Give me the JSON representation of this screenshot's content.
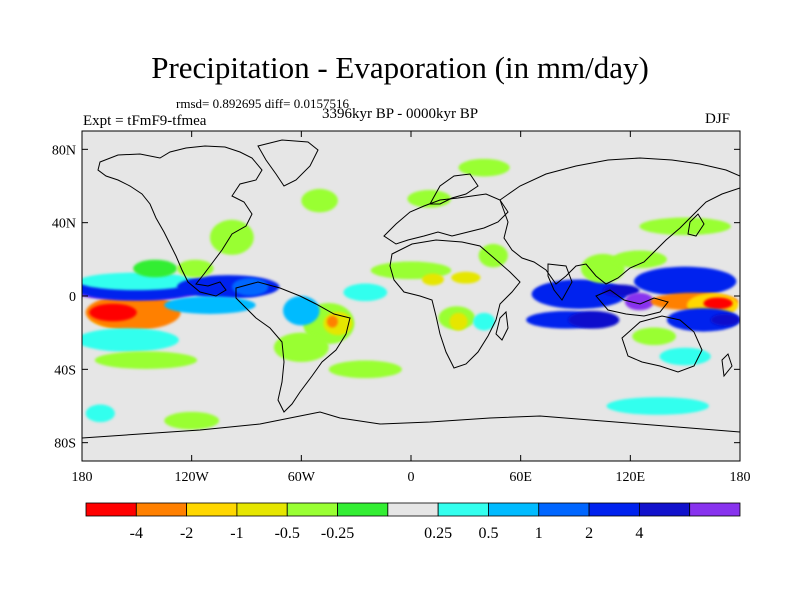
{
  "chart_data": {
    "type": "heatmap",
    "title": "Precipitation - Evaporation (in mm/day)",
    "stats_text": "rmsd= 0.892695 diff= 0.0157516",
    "left_label": "Expt = tFmF9-tfmea",
    "center_label": "3396kyr BP - 0000kyr BP",
    "right_label": "DJF",
    "x_range": [
      -180,
      180
    ],
    "y_range": [
      -90,
      90
    ],
    "x_ticks": [
      {
        "value": -180,
        "label": "180"
      },
      {
        "value": -120,
        "label": "120W"
      },
      {
        "value": -60,
        "label": "60W"
      },
      {
        "value": 0,
        "label": "0"
      },
      {
        "value": 60,
        "label": "60E"
      },
      {
        "value": 120,
        "label": "120E"
      },
      {
        "value": 180,
        "label": "180"
      }
    ],
    "y_ticks": [
      {
        "value": 80,
        "label": "80N"
      },
      {
        "value": 40,
        "label": "40N"
      },
      {
        "value": 0,
        "label": "0"
      },
      {
        "value": -40,
        "label": "40S"
      },
      {
        "value": -80,
        "label": "80S"
      }
    ],
    "colorbar": {
      "colors": [
        "#ff0000",
        "#ff8000",
        "#ffd700",
        "#e6e600",
        "#99ff33",
        "#33ee33",
        "#e6e6e6",
        "#33ffee",
        "#00bbff",
        "#0066ff",
        "#0022ee",
        "#1111cc",
        "#8833ee"
      ],
      "labels": [
        "-4",
        "-2",
        "-1",
        "-0.5",
        "-0.25",
        "0.25",
        "0.5",
        "1",
        "2",
        "4"
      ]
    },
    "regions": [
      {
        "level": 2,
        "cx": -159,
        "cy": -11,
        "rx": 17,
        "ry": 4
      },
      {
        "level": 1,
        "cx": -152,
        "cy": -9,
        "rx": 26,
        "ry": 6
      },
      {
        "level": 0,
        "cx": -163,
        "cy": -9,
        "rx": 13,
        "ry": 3
      },
      {
        "level": 12,
        "cx": -150,
        "cy": 1,
        "rx": 32,
        "ry": 2
      },
      {
        "level": 10,
        "cx": -150,
        "cy": 4,
        "rx": 34,
        "ry": 4
      },
      {
        "level": 7,
        "cx": -150,
        "cy": 8,
        "rx": 32,
        "ry": 3
      },
      {
        "level": 7,
        "cx": -155,
        "cy": -24,
        "rx": 28,
        "ry": 4
      },
      {
        "level": 10,
        "cx": -100,
        "cy": 5,
        "rx": 28,
        "ry": 4
      },
      {
        "level": 9,
        "cx": -88,
        "cy": 5,
        "rx": 10,
        "ry": 3
      },
      {
        "level": 5,
        "cx": -140,
        "cy": 15,
        "rx": 12,
        "ry": 3
      },
      {
        "level": 4,
        "cx": -118,
        "cy": 15,
        "rx": 10,
        "ry": 3
      },
      {
        "level": 8,
        "cx": -110,
        "cy": -5,
        "rx": 25,
        "ry": 3
      },
      {
        "level": 4,
        "cx": -45,
        "cy": -15,
        "rx": 14,
        "ry": 7
      },
      {
        "level": 3,
        "cx": -40,
        "cy": -15,
        "rx": 8,
        "ry": 4
      },
      {
        "level": 1,
        "cx": -43,
        "cy": -14,
        "rx": 3,
        "ry": 2
      },
      {
        "level": 8,
        "cx": -60,
        "cy": -8,
        "rx": 10,
        "ry": 5
      },
      {
        "level": 4,
        "cx": -60,
        "cy": -28,
        "rx": 15,
        "ry": 5
      },
      {
        "level": 7,
        "cx": -25,
        "cy": 2,
        "rx": 12,
        "ry": 3
      },
      {
        "level": 4,
        "cx": -145,
        "cy": -35,
        "rx": 28,
        "ry": 3
      },
      {
        "level": 4,
        "cx": -25,
        "cy": -40,
        "rx": 20,
        "ry": 3
      },
      {
        "level": 4,
        "cx": -98,
        "cy": 32,
        "rx": 12,
        "ry": 6
      },
      {
        "level": 4,
        "cx": -50,
        "cy": 52,
        "rx": 10,
        "ry": 4
      },
      {
        "level": 4,
        "cx": 10,
        "cy": 53,
        "rx": 12,
        "ry": 3
      },
      {
        "level": 4,
        "cx": 0,
        "cy": 14,
        "rx": 22,
        "ry": 3
      },
      {
        "level": 3,
        "cx": 30,
        "cy": 10,
        "rx": 8,
        "ry": 2
      },
      {
        "level": 3,
        "cx": 12,
        "cy": 9,
        "rx": 6,
        "ry": 2
      },
      {
        "level": 4,
        "cx": 25,
        "cy": -12,
        "rx": 10,
        "ry": 4
      },
      {
        "level": 3,
        "cx": 26,
        "cy": -14,
        "rx": 5,
        "ry": 3
      },
      {
        "level": 7,
        "cx": 40,
        "cy": -14,
        "rx": 6,
        "ry": 3
      },
      {
        "level": 4,
        "cx": 45,
        "cy": 22,
        "rx": 8,
        "ry": 4
      },
      {
        "level": 4,
        "cx": 40,
        "cy": 70,
        "rx": 14,
        "ry": 3
      },
      {
        "level": 11,
        "cx": 90,
        "cy": 2,
        "rx": 22,
        "ry": 3
      },
      {
        "level": 10,
        "cx": 92,
        "cy": 1,
        "rx": 26,
        "ry": 5
      },
      {
        "level": 10,
        "cx": 85,
        "cy": -13,
        "rx": 22,
        "ry": 3
      },
      {
        "level": 11,
        "cx": 100,
        "cy": -13,
        "rx": 14,
        "ry": 3
      },
      {
        "level": 4,
        "cx": 105,
        "cy": 15,
        "rx": 12,
        "ry": 5
      },
      {
        "level": 4,
        "cx": 125,
        "cy": 20,
        "rx": 15,
        "ry": 3
      },
      {
        "level": 11,
        "cx": 115,
        "cy": 3,
        "rx": 10,
        "ry": 2
      },
      {
        "level": 12,
        "cx": 125,
        "cy": -3,
        "rx": 8,
        "ry": 3
      },
      {
        "level": 10,
        "cx": 150,
        "cy": 8,
        "rx": 28,
        "ry": 5
      },
      {
        "level": 1,
        "cx": 155,
        "cy": -3,
        "rx": 24,
        "ry": 3
      },
      {
        "level": 2,
        "cx": 165,
        "cy": -5,
        "rx": 14,
        "ry": 4
      },
      {
        "level": 0,
        "cx": 168,
        "cy": -4,
        "rx": 8,
        "ry": 2
      },
      {
        "level": 10,
        "cx": 160,
        "cy": -13,
        "rx": 20,
        "ry": 4
      },
      {
        "level": 11,
        "cx": 172,
        "cy": -13,
        "rx": 8,
        "ry": 2
      },
      {
        "level": 4,
        "cx": 133,
        "cy": -22,
        "rx": 12,
        "ry": 3
      },
      {
        "level": 7,
        "cx": 150,
        "cy": -33,
        "rx": 14,
        "ry": 3
      },
      {
        "level": 4,
        "cx": 150,
        "cy": 38,
        "rx": 25,
        "ry": 3
      },
      {
        "level": 7,
        "cx": 135,
        "cy": -60,
        "rx": 28,
        "ry": 3
      },
      {
        "level": 7,
        "cx": -170,
        "cy": -64,
        "rx": 8,
        "ry": 3
      },
      {
        "level": 4,
        "cx": -120,
        "cy": -68,
        "rx": 15,
        "ry": 3
      }
    ]
  }
}
